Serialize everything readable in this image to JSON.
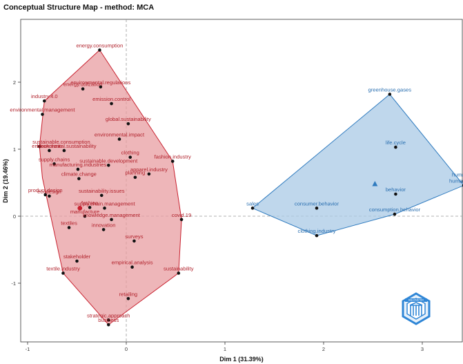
{
  "chart_data": {
    "type": "scatter",
    "title": "Conceptual Structure Map - method: MCA",
    "xlabel": "Dim 1 (31.39%)",
    "ylabel": "Dim 2 (19.46%)",
    "xlim": [
      -1.1,
      3.45
    ],
    "ylim": [
      -1.62,
      2.6
    ],
    "x_ticks": [
      -1,
      0,
      1,
      2,
      3
    ],
    "y_ticks": [
      -1,
      0,
      1,
      2
    ],
    "x_tick_labels": [
      "-1",
      "0",
      "1",
      "2",
      "3"
    ],
    "y_tick_labels": [
      "-1",
      "0",
      "1",
      "2"
    ],
    "grid": false,
    "colors": {
      "cluster1": "#c8202e",
      "cluster1_fill": "#e89da2",
      "cluster2": "#2f7bbf",
      "cluster2_fill": "#a9c9e6",
      "reference_line": "#999999",
      "point": "#111111"
    },
    "clusters": [
      {
        "id": 1,
        "color": "#c8202e",
        "centroid": [
          -0.47,
          0.12
        ],
        "hull": [
          [
            -0.27,
            2.48
          ],
          [
            -0.83,
            1.72
          ],
          [
            -0.88,
            1.04
          ],
          [
            -0.85,
            0.57
          ],
          [
            -0.64,
            -0.85
          ],
          [
            -0.18,
            -1.62
          ],
          [
            0.53,
            -0.85
          ],
          [
            0.56,
            -0.05
          ],
          [
            0.47,
            0.82
          ],
          [
            -0.27,
            2.48
          ]
        ],
        "points": [
          {
            "label": "energy.consumption",
            "x": -0.27,
            "y": 2.48
          },
          {
            "label": "environmental.regulations",
            "x": -0.26,
            "y": 1.93
          },
          {
            "label": "energy.utilization",
            "x": -0.44,
            "y": 1.9
          },
          {
            "label": "industry.4.0",
            "x": -0.83,
            "y": 1.72
          },
          {
            "label": "emission.control",
            "x": -0.15,
            "y": 1.68
          },
          {
            "label": "environmental.management",
            "x": -0.85,
            "y": 1.52
          },
          {
            "label": "global.sustainability",
            "x": 0.02,
            "y": 1.38
          },
          {
            "label": "sustainable.consumption",
            "x": -0.88,
            "y": 1.04
          },
          {
            "label": "environmental.impact",
            "x": -0.07,
            "y": 1.15
          },
          {
            "label": "environmental.sustainability",
            "x": -0.63,
            "y": 0.98
          },
          {
            "label": "blockchain",
            "x": -0.78,
            "y": 0.98
          },
          {
            "label": "fashion.industry",
            "x": 0.47,
            "y": 0.82
          },
          {
            "label": "supply.chains",
            "x": -0.73,
            "y": 0.78
          },
          {
            "label": "clothing",
            "x": 0.04,
            "y": 0.88
          },
          {
            "label": "sustainable.development",
            "x": -0.18,
            "y": 0.76
          },
          {
            "label": "manufacturing.industries",
            "x": -0.49,
            "y": 0.7
          },
          {
            "label": "apparel.industry",
            "x": 0.23,
            "y": 0.63
          },
          {
            "label": "climate.change",
            "x": -0.48,
            "y": 0.56
          },
          {
            "label": "planning",
            "x": 0.09,
            "y": 0.58
          },
          {
            "label": "ecodesign",
            "x": -0.78,
            "y": 0.3
          },
          {
            "label": "sustainability.issues",
            "x": -0.25,
            "y": 0.31
          },
          {
            "label": "product.design",
            "x": -0.82,
            "y": 0.32
          },
          {
            "label": "fashion",
            "x": -0.37,
            "y": 0.13
          },
          {
            "label": "supply.chain.management",
            "x": -0.22,
            "y": 0.12
          },
          {
            "label": "covid.19",
            "x": 0.56,
            "y": -0.05
          },
          {
            "label": "manufacture",
            "x": -0.42,
            "y": 0.0
          },
          {
            "label": "knowledge.management",
            "x": -0.15,
            "y": -0.05
          },
          {
            "label": "textiles",
            "x": -0.58,
            "y": -0.17
          },
          {
            "label": "innovation",
            "x": -0.23,
            "y": -0.2
          },
          {
            "label": "surveys",
            "x": 0.08,
            "y": -0.37
          },
          {
            "label": "textile.industry",
            "x": -0.64,
            "y": -0.85
          },
          {
            "label": "stakeholder",
            "x": -0.5,
            "y": -0.67
          },
          {
            "label": "empirical.analysis",
            "x": 0.06,
            "y": -0.76
          },
          {
            "label": "sustainability",
            "x": 0.53,
            "y": -0.85
          },
          {
            "label": "retailing",
            "x": 0.02,
            "y": -1.23
          },
          {
            "label": "strategic.approach",
            "x": -0.18,
            "y": -1.55
          },
          {
            "label": "business",
            "x": -0.18,
            "y": -1.62
          }
        ]
      },
      {
        "id": 2,
        "color": "#2f7bbf",
        "centroid": [
          2.52,
          0.48
        ],
        "hull": [
          [
            2.67,
            1.82
          ],
          [
            3.42,
            0.46
          ],
          [
            2.72,
            0.03
          ],
          [
            1.93,
            -0.29
          ],
          [
            1.28,
            0.12
          ],
          [
            2.67,
            1.82
          ]
        ],
        "points": [
          {
            "label": "greenhouse.gases",
            "x": 2.67,
            "y": 1.82
          },
          {
            "label": "life.cycle",
            "x": 2.73,
            "y": 1.03
          },
          {
            "label": "humans",
            "x": 3.42,
            "y": 0.46
          },
          {
            "label": "human",
            "x": 3.42,
            "y": 0.46
          },
          {
            "label": "behavior",
            "x": 2.73,
            "y": 0.33
          },
          {
            "label": "consumption.behavior",
            "x": 2.72,
            "y": 0.03
          },
          {
            "label": "sales",
            "x": 1.28,
            "y": 0.12
          },
          {
            "label": "consumer.behavior",
            "x": 1.93,
            "y": 0.12
          },
          {
            "label": "clothing.industry",
            "x": 1.93,
            "y": -0.29
          }
        ]
      }
    ]
  },
  "logo_text": "BIBLIOMETRIX"
}
